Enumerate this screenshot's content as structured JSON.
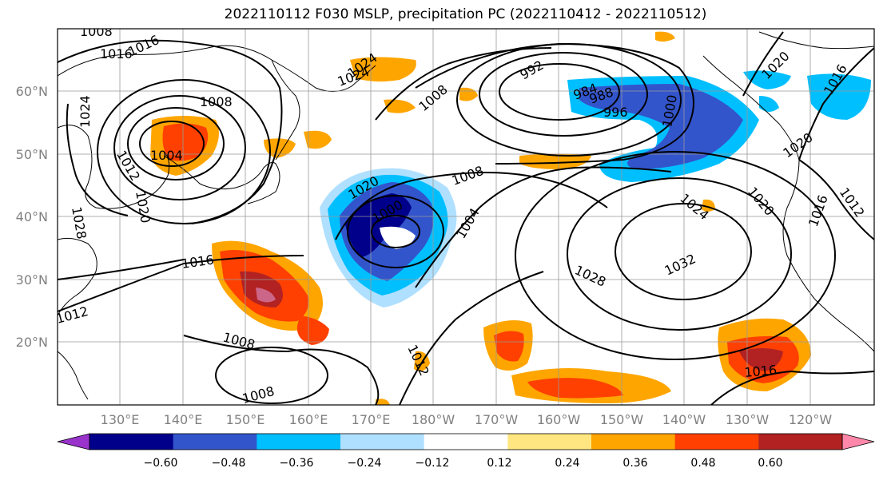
{
  "title": "2022110112 F030 MSLP, precipitation PC (2022110412 - 2022110512)",
  "latitude_labels": [
    "60°N",
    "50°N",
    "40°N",
    "30°N",
    "20°N"
  ],
  "longitude_labels": [
    "130°E",
    "140°E",
    "150°E",
    "160°E",
    "170°E",
    "180°W",
    "170°W",
    "160°W",
    "150°W",
    "140°W",
    "130°W",
    "120°W"
  ],
  "colorbar": {
    "tick_labels": [
      "−0.60",
      "−0.48",
      "−0.36",
      "−0.24",
      "−0.12",
      "0.12",
      "0.24",
      "0.36",
      "0.48",
      "0.60"
    ],
    "colors": [
      "#9933cc",
      "#00008b",
      "#3355cc",
      "#00bfff",
      "#b0e0ff",
      "#ffffff",
      "#ffe680",
      "#ffa500",
      "#ff4000",
      "#b22222",
      "#ff88aa"
    ]
  },
  "isobar_labels": [
    "1008",
    "1016",
    "1016",
    "1008",
    "1024",
    "1012",
    "1004",
    "1020",
    "1028",
    "1024",
    "992",
    "984",
    "988",
    "996",
    "1000",
    "1008",
    "1020",
    "1008",
    "1004",
    "1000",
    "1016",
    "1024",
    "1020",
    "1032",
    "1028",
    "1020",
    "1016",
    "1016",
    "1012",
    "1008",
    "1008",
    "1012",
    "1012",
    "1016",
    "1020",
    "1024"
  ]
}
